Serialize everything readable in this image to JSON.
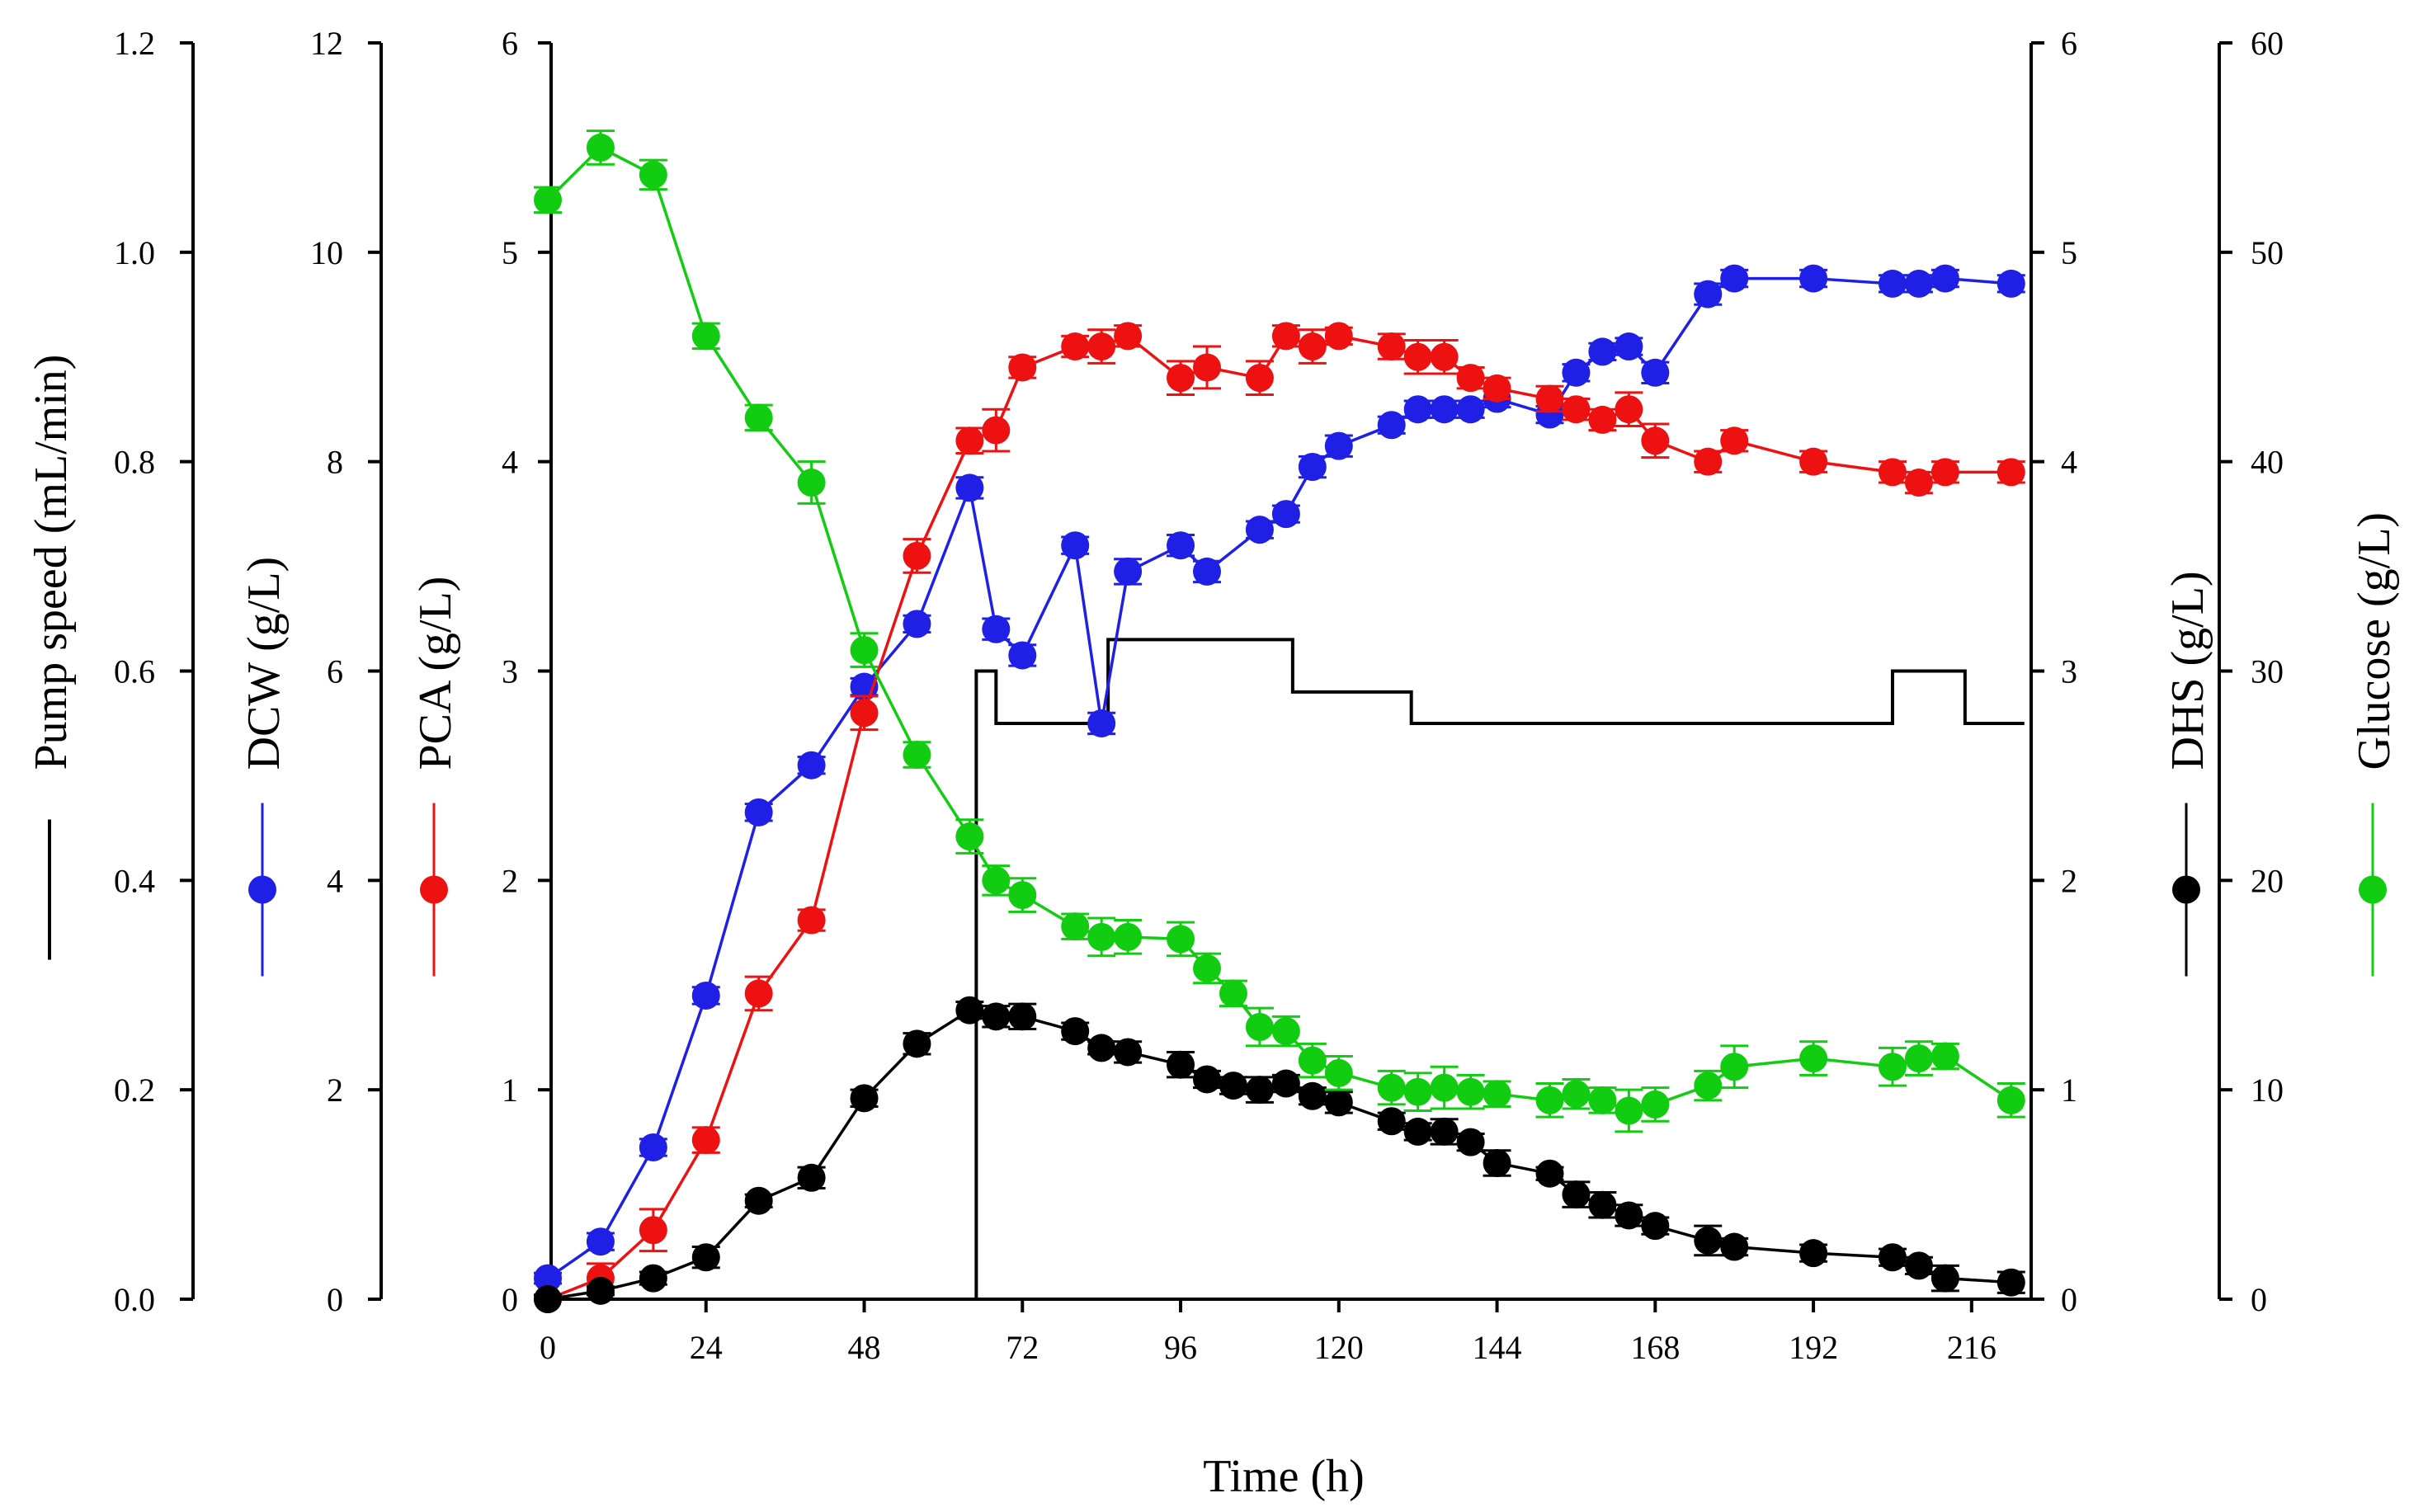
{
  "chart_data": {
    "type": "line",
    "xlabel": "Time (h)",
    "xlim": [
      -1,
      224
    ],
    "xticks": [
      0,
      24,
      48,
      72,
      96,
      120,
      144,
      168,
      192,
      216
    ],
    "axes": [
      {
        "id": "pump",
        "label": "Pump speed (mL/min)",
        "ylim": [
          0,
          1.2
        ],
        "ticks": [
          "0.0",
          "0.2",
          "0.4",
          "0.6",
          "0.8",
          "1.0",
          "1.2"
        ],
        "side": "left",
        "color": "#000000",
        "legend_marker": "line"
      },
      {
        "id": "dcw",
        "label": "DCW (g/L)",
        "ylim": [
          0,
          12
        ],
        "ticks": [
          "0",
          "2",
          "4",
          "6",
          "8",
          "10",
          "12"
        ],
        "side": "left",
        "color": "#1f1fe6",
        "legend_marker": "dot-line"
      },
      {
        "id": "pca",
        "label": "PCA (g/L)",
        "ylim": [
          0,
          6
        ],
        "ticks": [
          "0",
          "1",
          "2",
          "3",
          "4",
          "5",
          "6"
        ],
        "side": "left",
        "color": "#ee1111",
        "legend_marker": "dot-line"
      },
      {
        "id": "dhs",
        "label": "DHS (g/L)",
        "ylim": [
          0,
          6
        ],
        "ticks": [
          "0",
          "1",
          "2",
          "3",
          "4",
          "5",
          "6"
        ],
        "side": "right",
        "color": "#000000",
        "legend_marker": "dot-line"
      },
      {
        "id": "glucose",
        "label": "Glucose (g/L)",
        "ylim": [
          0,
          60
        ],
        "ticks": [
          "0",
          "10",
          "20",
          "30",
          "40",
          "50",
          "60"
        ],
        "side": "right",
        "color": "#11cc11",
        "legend_marker": "dot-line"
      }
    ],
    "series": [
      {
        "name": "DCW",
        "axis": "dcw",
        "color": "#1f1fe6",
        "marker": "circle",
        "x": [
          0,
          8,
          16,
          24,
          32,
          40,
          48,
          56,
          64,
          68,
          72,
          80,
          84,
          88,
          96,
          100,
          108,
          112,
          116,
          120,
          128,
          132,
          136,
          140,
          144,
          152,
          156,
          160,
          164,
          168,
          176,
          180,
          192,
          204,
          208,
          212,
          222
        ],
        "values": [
          0.2,
          0.55,
          1.45,
          2.9,
          4.65,
          5.1,
          5.85,
          6.45,
          7.75,
          6.4,
          6.15,
          7.2,
          5.5,
          6.95,
          7.2,
          6.95,
          7.35,
          7.5,
          7.95,
          8.15,
          8.35,
          8.5,
          8.5,
          8.5,
          8.6,
          8.45,
          8.85,
          9.05,
          9.1,
          8.85,
          9.6,
          9.75,
          9.75,
          9.7,
          9.7,
          9.75,
          9.7
        ],
        "errors": [
          0.05,
          0.08,
          0.08,
          0.08,
          0.08,
          0.08,
          0.08,
          0.08,
          0.1,
          0.1,
          0.1,
          0.08,
          0.1,
          0.12,
          0.1,
          0.1,
          0.08,
          0.08,
          0.1,
          0.1,
          0.08,
          0.08,
          0.08,
          0.08,
          0.08,
          0.08,
          0.08,
          0.08,
          0.08,
          0.1,
          0.1,
          0.08,
          0.08,
          0.08,
          0.08,
          0.08,
          0.08
        ]
      },
      {
        "name": "PCA",
        "axis": "pca",
        "color": "#ee1111",
        "marker": "circle",
        "x": [
          0,
          8,
          16,
          24,
          32,
          40,
          48,
          56,
          64,
          68,
          72,
          80,
          84,
          88,
          96,
          100,
          108,
          112,
          116,
          120,
          128,
          132,
          136,
          140,
          144,
          152,
          156,
          160,
          164,
          168,
          176,
          180,
          192,
          204,
          208,
          212,
          222
        ],
        "values": [
          0.0,
          0.1,
          0.33,
          0.76,
          1.46,
          1.81,
          2.8,
          3.55,
          4.1,
          4.15,
          4.45,
          4.55,
          4.55,
          4.6,
          4.4,
          4.45,
          4.4,
          4.6,
          4.55,
          4.6,
          4.55,
          4.5,
          4.5,
          4.4,
          4.35,
          4.3,
          4.25,
          4.2,
          4.25,
          4.1,
          4.0,
          4.1,
          4.0,
          3.95,
          3.9,
          3.95,
          3.95
        ],
        "errors": [
          0.02,
          0.07,
          0.1,
          0.06,
          0.08,
          0.05,
          0.08,
          0.08,
          0.06,
          0.1,
          0.05,
          0.05,
          0.08,
          0.05,
          0.08,
          0.1,
          0.08,
          0.05,
          0.08,
          0.04,
          0.06,
          0.08,
          0.08,
          0.05,
          0.05,
          0.06,
          0.05,
          0.05,
          0.08,
          0.08,
          0.05,
          0.05,
          0.05,
          0.05,
          0.05,
          0.05,
          0.05
        ]
      },
      {
        "name": "DHS",
        "axis": "dhs",
        "color": "#000000",
        "marker": "circle",
        "x": [
          0,
          8,
          16,
          24,
          32,
          40,
          48,
          56,
          64,
          68,
          72,
          80,
          84,
          88,
          96,
          100,
          104,
          108,
          112,
          116,
          120,
          128,
          132,
          136,
          140,
          144,
          152,
          156,
          160,
          164,
          168,
          176,
          180,
          192,
          204,
          208,
          212,
          222
        ],
        "values": [
          0.0,
          0.04,
          0.1,
          0.2,
          0.47,
          0.58,
          0.96,
          1.22,
          1.38,
          1.35,
          1.35,
          1.28,
          1.2,
          1.18,
          1.12,
          1.05,
          1.02,
          1.0,
          1.03,
          0.97,
          0.94,
          0.85,
          0.8,
          0.8,
          0.75,
          0.65,
          0.6,
          0.5,
          0.45,
          0.4,
          0.35,
          0.28,
          0.25,
          0.22,
          0.2,
          0.16,
          0.1,
          0.08
        ],
        "errors": [
          0.02,
          0.02,
          0.03,
          0.05,
          0.03,
          0.05,
          0.04,
          0.05,
          0.04,
          0.05,
          0.06,
          0.04,
          0.03,
          0.05,
          0.06,
          0.04,
          0.04,
          0.06,
          0.04,
          0.04,
          0.05,
          0.04,
          0.04,
          0.06,
          0.04,
          0.06,
          0.03,
          0.06,
          0.06,
          0.05,
          0.04,
          0.07,
          0.04,
          0.04,
          0.04,
          0.04,
          0.06,
          0.05
        ]
      },
      {
        "name": "Glucose",
        "axis": "glucose",
        "color": "#11cc11",
        "marker": "circle",
        "x": [
          0,
          8,
          16,
          24,
          32,
          40,
          48,
          56,
          64,
          68,
          72,
          80,
          84,
          88,
          96,
          100,
          104,
          108,
          112,
          116,
          120,
          128,
          132,
          136,
          140,
          144,
          152,
          156,
          160,
          164,
          168,
          176,
          180,
          192,
          204,
          208,
          212,
          222
        ],
        "values": [
          52.5,
          55.0,
          53.7,
          46.0,
          42.1,
          39.0,
          31.0,
          26.0,
          22.1,
          20.0,
          19.3,
          17.8,
          17.3,
          17.3,
          17.2,
          15.8,
          14.6,
          13.0,
          12.8,
          11.4,
          10.8,
          10.1,
          9.9,
          10.1,
          9.9,
          9.8,
          9.5,
          9.8,
          9.5,
          9.0,
          9.3,
          10.2,
          11.1,
          11.5,
          11.1,
          11.5,
          11.6,
          9.5
        ],
        "errors": [
          0.6,
          0.8,
          0.7,
          0.6,
          0.6,
          1.0,
          0.8,
          0.6,
          0.8,
          0.7,
          0.8,
          0.6,
          0.9,
          0.8,
          0.8,
          0.7,
          0.6,
          0.9,
          0.7,
          0.8,
          0.8,
          0.8,
          0.9,
          1.0,
          0.8,
          0.6,
          0.8,
          0.7,
          0.6,
          1.0,
          0.8,
          0.7,
          1.0,
          0.8,
          0.9,
          0.8,
          0.6,
          0.8
        ]
      }
    ],
    "pump_profile": {
      "name": "Pump speed",
      "axis": "pump",
      "color": "#000000",
      "style": "step",
      "x": [
        0,
        65,
        65,
        68,
        68,
        85,
        85,
        113,
        113,
        131,
        131,
        204,
        204,
        215,
        215,
        224
      ],
      "values": [
        0,
        0,
        0.6,
        0.6,
        0.55,
        0.55,
        0.63,
        0.63,
        0.58,
        0.58,
        0.55,
        0.55,
        0.6,
        0.6,
        0.55,
        0.55
      ]
    }
  }
}
